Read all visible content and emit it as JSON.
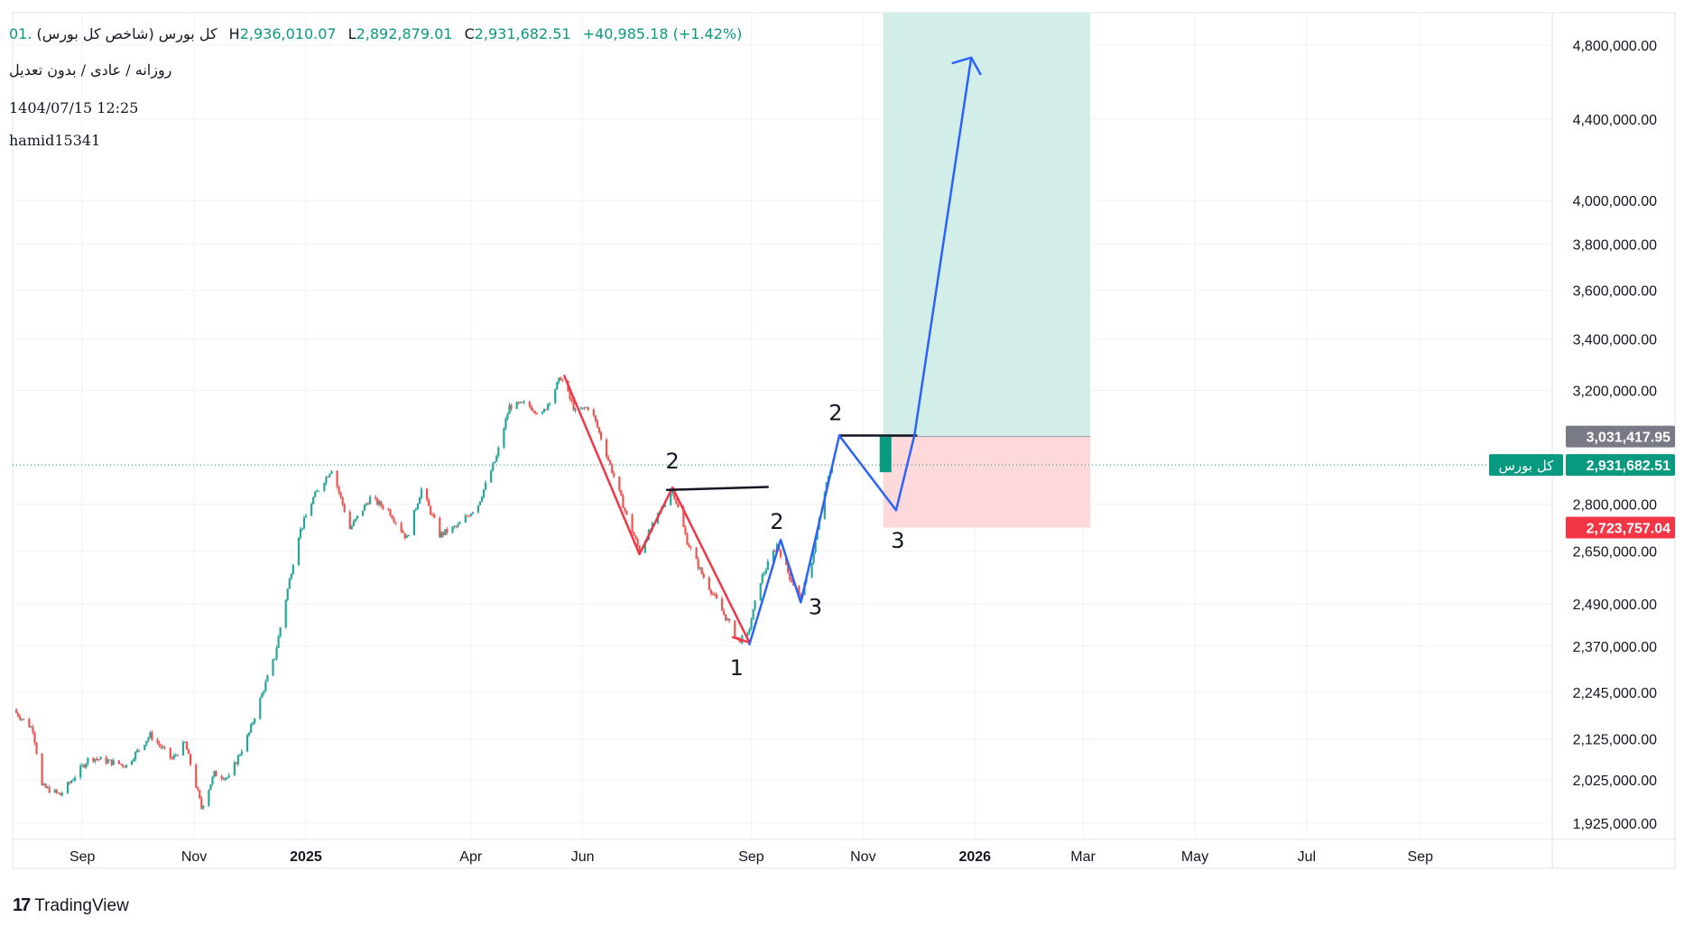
{
  "legend": {
    "symbol": "کل بورس (شاخص کل بورس)",
    "open_partial": ".01",
    "h_label": "H",
    "high": "2,936,010.07",
    "l_label": "L",
    "low": "2,892,879.01",
    "c_label": "C",
    "close": "2,931,682.51",
    "change": "+40,985.18 (+1.42%)",
    "interval_line": "روزانه / عادی / بدون تعدیل",
    "timestamp": "1404/07/15 12:25",
    "author": "hamid15341"
  },
  "branding": {
    "logo": "17",
    "name": "TradingView"
  },
  "price_labels": {
    "target_price": "3,031,417.95",
    "symbol_tag": "کل بورس",
    "current_price": "2,931,682.51",
    "stop_price": "2,723,757.04"
  },
  "colors": {
    "up": "#26a69a",
    "down": "#ef5350",
    "profit_zone": "#d3ede8",
    "loss_zone": "#fdd9dc",
    "wave_red": "#f23645",
    "wave_blue": "#2962ff",
    "price_line": "#089981",
    "target_tag": "#787b86",
    "stop_tag": "#f23645"
  },
  "chart_data": {
    "type": "candlestick",
    "y_scale": "log",
    "y_ticks": [
      "4,800,000.00",
      "4,400,000.00",
      "4,000,000.00",
      "3,800,000.00",
      "3,600,000.00",
      "3,400,000.00",
      "3,200,000.00",
      "2,800,000.00",
      "2,650,000.00",
      "2,490,000.00",
      "2,370,000.00",
      "2,245,000.00",
      "2,125,000.00",
      "2,025,000.00",
      "1,925,000.00"
    ],
    "y_tick_values": [
      4800000,
      4400000,
      4000000,
      3800000,
      3600000,
      3400000,
      3200000,
      2800000,
      2650000,
      2490000,
      2370000,
      2245000,
      2125000,
      2025000,
      1925000
    ],
    "x_ticks": [
      "Sep",
      "Nov",
      "2025",
      "Apr",
      "Jun",
      "Sep",
      "Nov",
      "2026",
      "Mar",
      "May",
      "Jul",
      "Sep"
    ],
    "x_tick_dates": [
      "2024-09-01",
      "2024-11-01",
      "2025-01-01",
      "2025-04-01",
      "2025-06-01",
      "2025-09-01",
      "2025-11-01",
      "2026-01-01",
      "2026-03-01",
      "2026-05-01",
      "2026-07-01",
      "2026-09-01"
    ],
    "x_range": [
      "2024-07-25",
      "2026-11-12"
    ],
    "last_close": 2931682.51,
    "price_path": [
      [
        "2024-07-25",
        2200000
      ],
      [
        "2024-08-05",
        2150000
      ],
      [
        "2024-08-10",
        2010000
      ],
      [
        "2024-08-20",
        1990000
      ],
      [
        "2024-09-05",
        2080000
      ],
      [
        "2024-09-25",
        2060000
      ],
      [
        "2024-10-08",
        2135000
      ],
      [
        "2024-10-20",
        2075000
      ],
      [
        "2024-10-27",
        2115000
      ],
      [
        "2024-11-05",
        1960000
      ],
      [
        "2024-11-12",
        2040000
      ],
      [
        "2024-11-20",
        2030000
      ],
      [
        "2024-12-01",
        2140000
      ],
      [
        "2024-12-15",
        2340000
      ],
      [
        "2024-12-28",
        2700000
      ],
      [
        "2025-01-05",
        2820000
      ],
      [
        "2025-01-15",
        2920000
      ],
      [
        "2025-01-25",
        2720000
      ],
      [
        "2025-02-05",
        2820000
      ],
      [
        "2025-02-15",
        2780000
      ],
      [
        "2025-02-25",
        2690000
      ],
      [
        "2025-03-05",
        2850000
      ],
      [
        "2025-03-15",
        2700000
      ],
      [
        "2025-03-25",
        2730000
      ],
      [
        "2025-04-05",
        2800000
      ],
      [
        "2025-04-15",
        2960000
      ],
      [
        "2025-04-22",
        3140000
      ],
      [
        "2025-05-01",
        3150000
      ],
      [
        "2025-05-10",
        3110000
      ],
      [
        "2025-05-20",
        3250000
      ],
      [
        "2025-05-28",
        3120000
      ],
      [
        "2025-06-05",
        3140000
      ],
      [
        "2025-06-15",
        2950000
      ],
      [
        "2025-06-25",
        2760000
      ],
      [
        "2025-07-02",
        2650000
      ],
      [
        "2025-07-10",
        2740000
      ],
      [
        "2025-07-20",
        2850000
      ],
      [
        "2025-07-28",
        2680000
      ],
      [
        "2025-08-05",
        2580000
      ],
      [
        "2025-08-15",
        2480000
      ],
      [
        "2025-08-25",
        2385000
      ],
      [
        "2025-08-30",
        2400000
      ],
      [
        "2025-09-06",
        2560000
      ],
      [
        "2025-09-15",
        2670000
      ],
      [
        "2025-09-22",
        2570000
      ],
      [
        "2025-09-28",
        2505000
      ],
      [
        "2025-10-04",
        2620000
      ],
      [
        "2025-10-11",
        2840000
      ],
      [
        "2025-10-15",
        2931682.51
      ]
    ],
    "projection": {
      "target": 3031417.95,
      "stop": 2723757.04,
      "entry": 3031417.95,
      "take_profit_top": 5000000,
      "zone_start": "2025-11-12",
      "zone_end": "2026-03-05"
    },
    "annotations": {
      "red_wave": [
        [
          "2025-05-22",
          3255000
        ],
        [
          "2025-07-02",
          2640000
        ],
        [
          "2025-07-20",
          2855000
        ],
        [
          "2025-08-31",
          2380000
        ]
      ],
      "red_arrow_tail": [
        "2025-08-22",
        2395000
      ],
      "blue_wave": [
        [
          "2025-08-31",
          2375000
        ],
        [
          "2025-09-17",
          2685000
        ],
        [
          "2025-09-28",
          2495000
        ],
        [
          "2025-10-19",
          3035000
        ],
        [
          "2025-11-19",
          2780000
        ],
        [
          "2025-11-29",
          3035000
        ],
        [
          "2025-12-30",
          4730000
        ]
      ],
      "blue_arrowhead": [
        [
          "2025-12-20",
          4700000
        ],
        [
          "2025-12-30",
          4730000
        ],
        [
          "2026-01-04",
          4640000
        ]
      ],
      "neckline_low": [
        [
          "2025-07-17",
          2847000
        ],
        [
          "2025-09-10",
          2857000
        ]
      ],
      "neckline_high": [
        [
          "2025-10-19",
          3035000
        ],
        [
          "2025-11-30",
          3035000
        ]
      ],
      "entry_candle": [
        "2025-11-13",
        3031417.95,
        2931682.51
      ],
      "labels": [
        {
          "text": "2",
          "date": "2025-07-20",
          "price": 2920000
        },
        {
          "text": "1",
          "date": "2025-08-24",
          "price": 2290000
        },
        {
          "text": "2",
          "date": "2025-09-15",
          "price": 2720000
        },
        {
          "text": "3",
          "date": "2025-10-06",
          "price": 2460000
        },
        {
          "text": "2",
          "date": "2025-10-17",
          "price": 3090000
        },
        {
          "text": "3",
          "date": "2025-11-20",
          "price": 2660000
        }
      ]
    }
  }
}
